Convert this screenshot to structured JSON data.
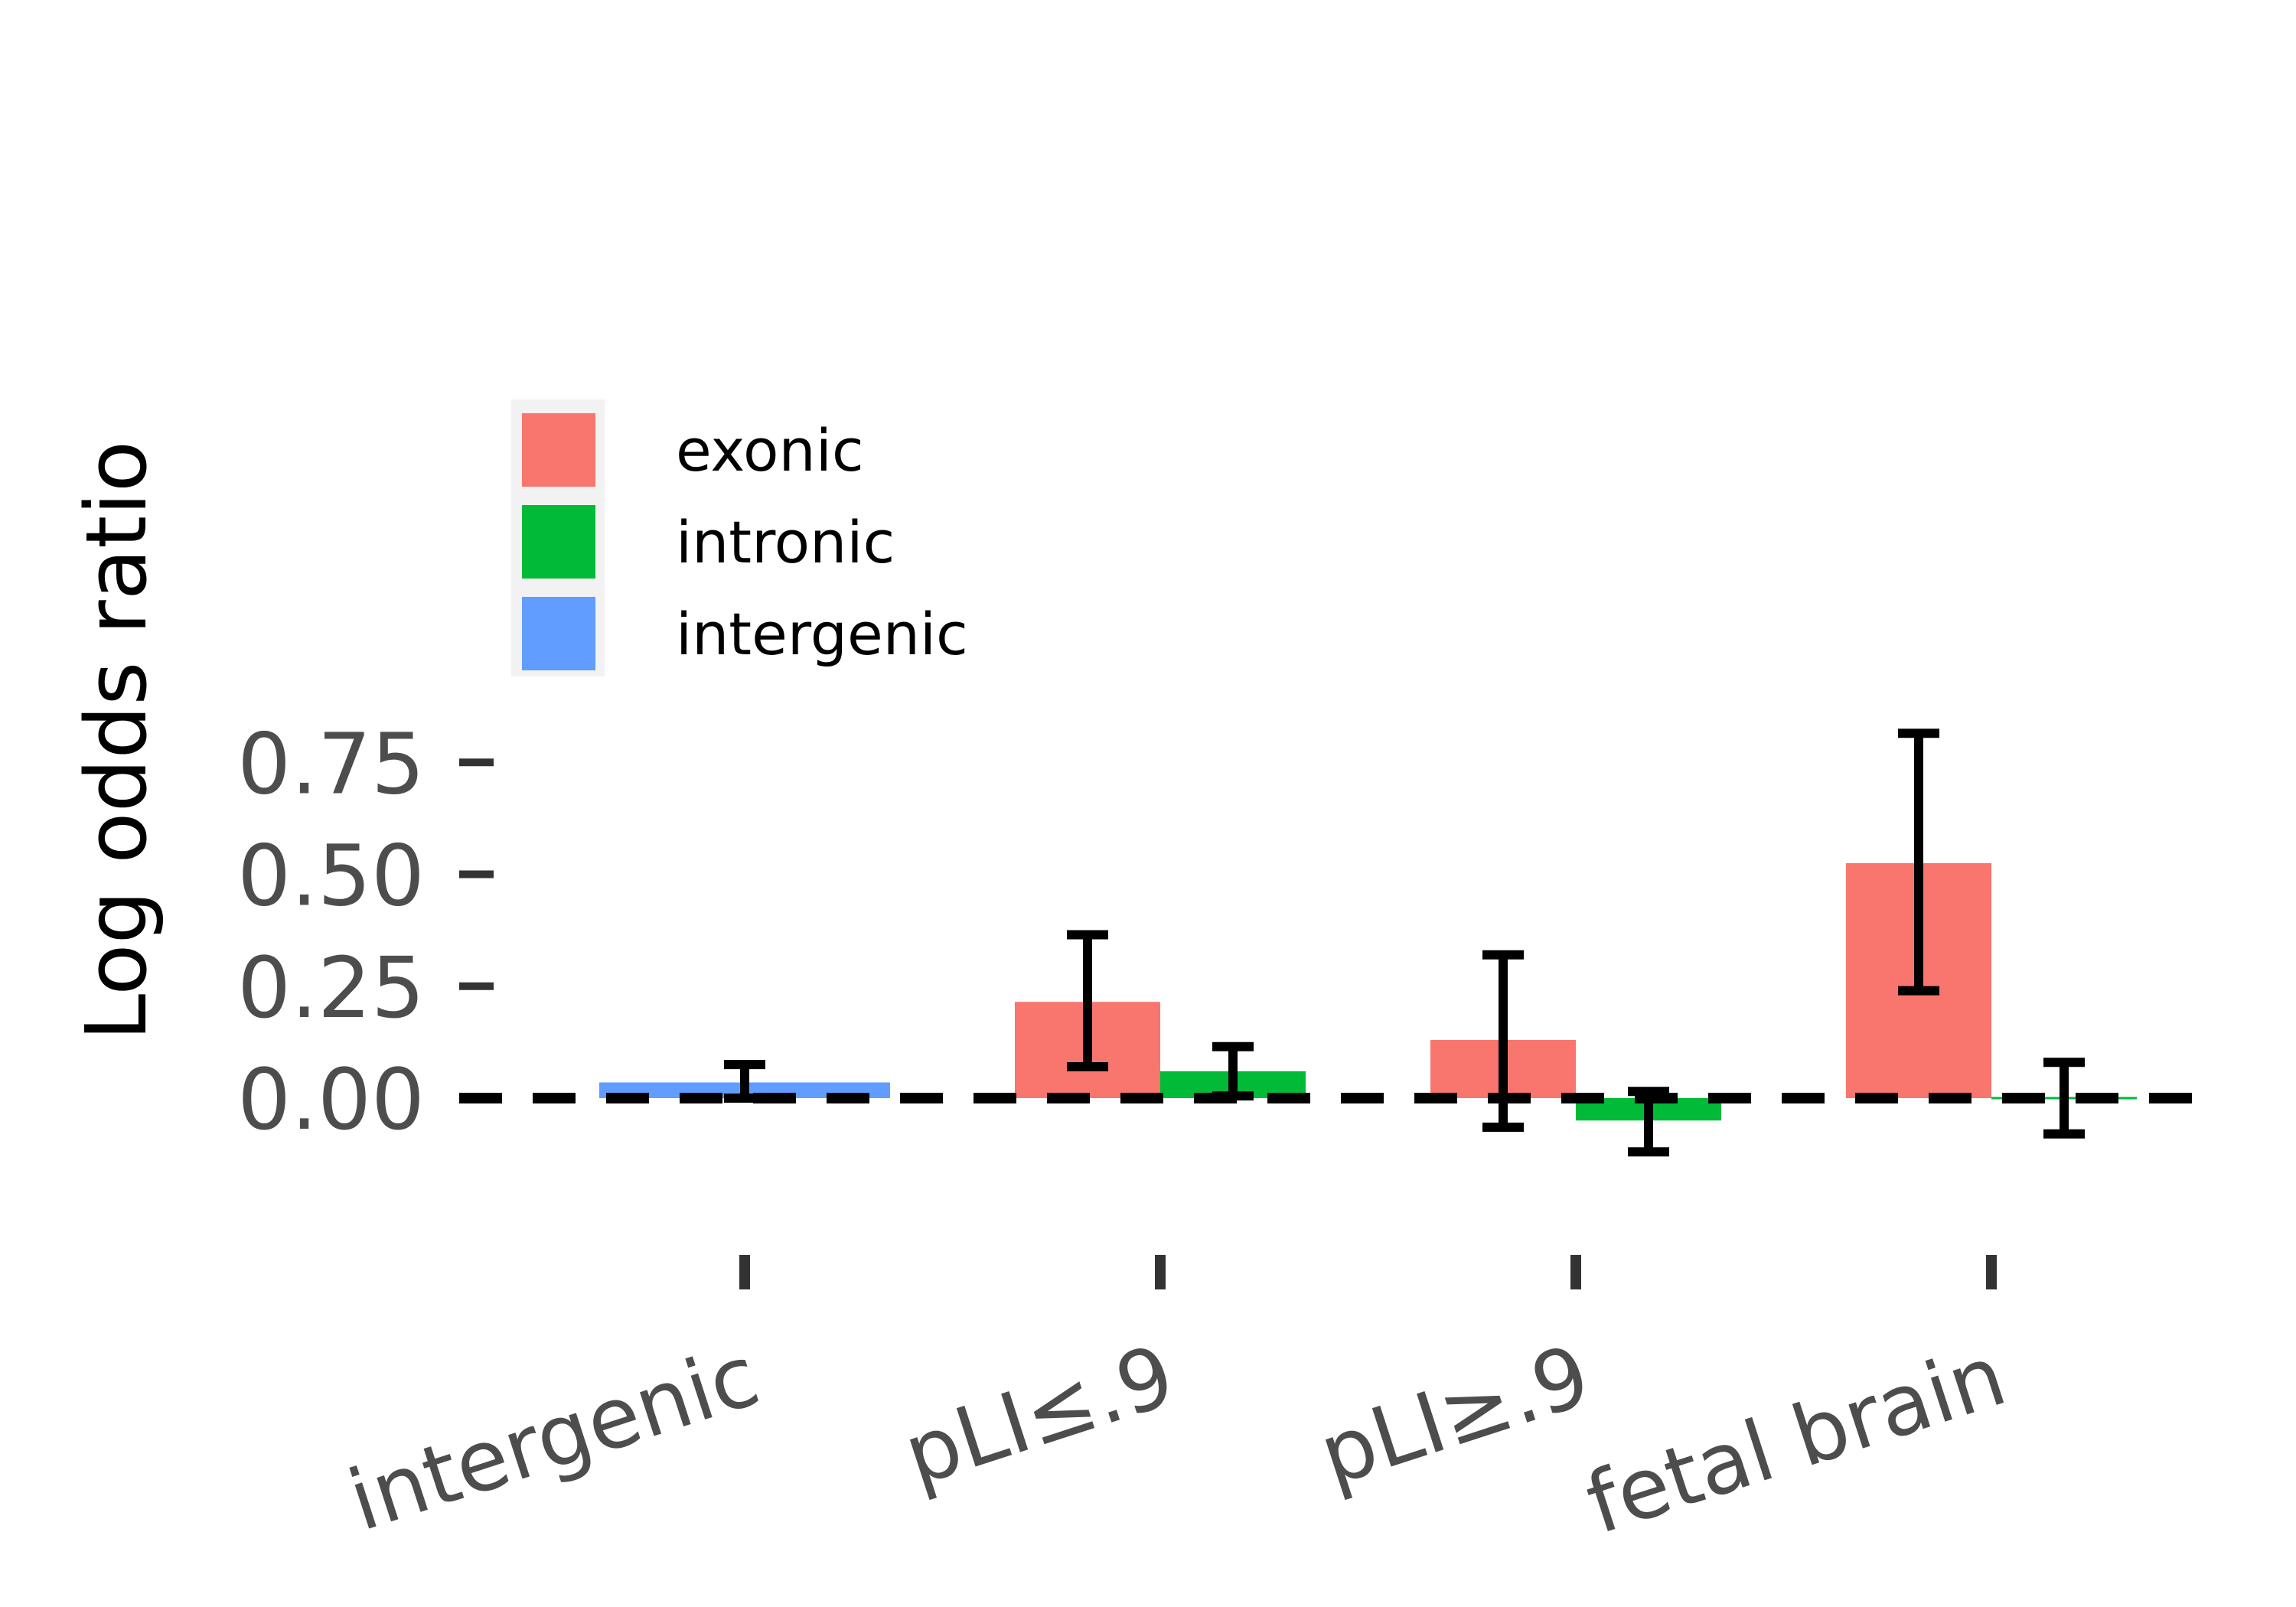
{
  "chart_data": {
    "type": "bar",
    "title": "",
    "xlabel": "",
    "ylabel": "Log odds ratio",
    "categories": [
      "intergenic",
      "pLI≤.9",
      "pLI≥.9",
      "fetal brain"
    ],
    "yticks": [
      "0.00",
      "0.25",
      "0.50",
      "0.75"
    ],
    "ylim": [
      -0.14,
      0.82
    ],
    "reference_line": 0,
    "grid": false,
    "legend": {
      "position": "top-left",
      "entries": [
        "exonic",
        "intronic",
        "intergenic"
      ]
    },
    "series": [
      {
        "name": "exonic",
        "color": "#F8766D",
        "values": [
          null,
          0.215,
          0.13,
          0.525
        ],
        "err_low": [
          null,
          0.07,
          -0.065,
          0.24
        ],
        "err_high": [
          null,
          0.365,
          0.32,
          0.815
        ]
      },
      {
        "name": "intronic",
        "color": "#00BA38",
        "values": [
          null,
          0.06,
          -0.05,
          -0.003
        ],
        "err_low": [
          null,
          0.005,
          -0.12,
          -0.08
        ],
        "err_high": [
          null,
          0.115,
          0.015,
          0.08
        ]
      },
      {
        "name": "intergenic",
        "color": "#619CFF",
        "values": [
          0.035,
          null,
          null,
          null
        ],
        "err_low": [
          0.0,
          null,
          null,
          null
        ],
        "err_high": [
          0.075,
          null,
          null,
          null
        ]
      }
    ]
  }
}
